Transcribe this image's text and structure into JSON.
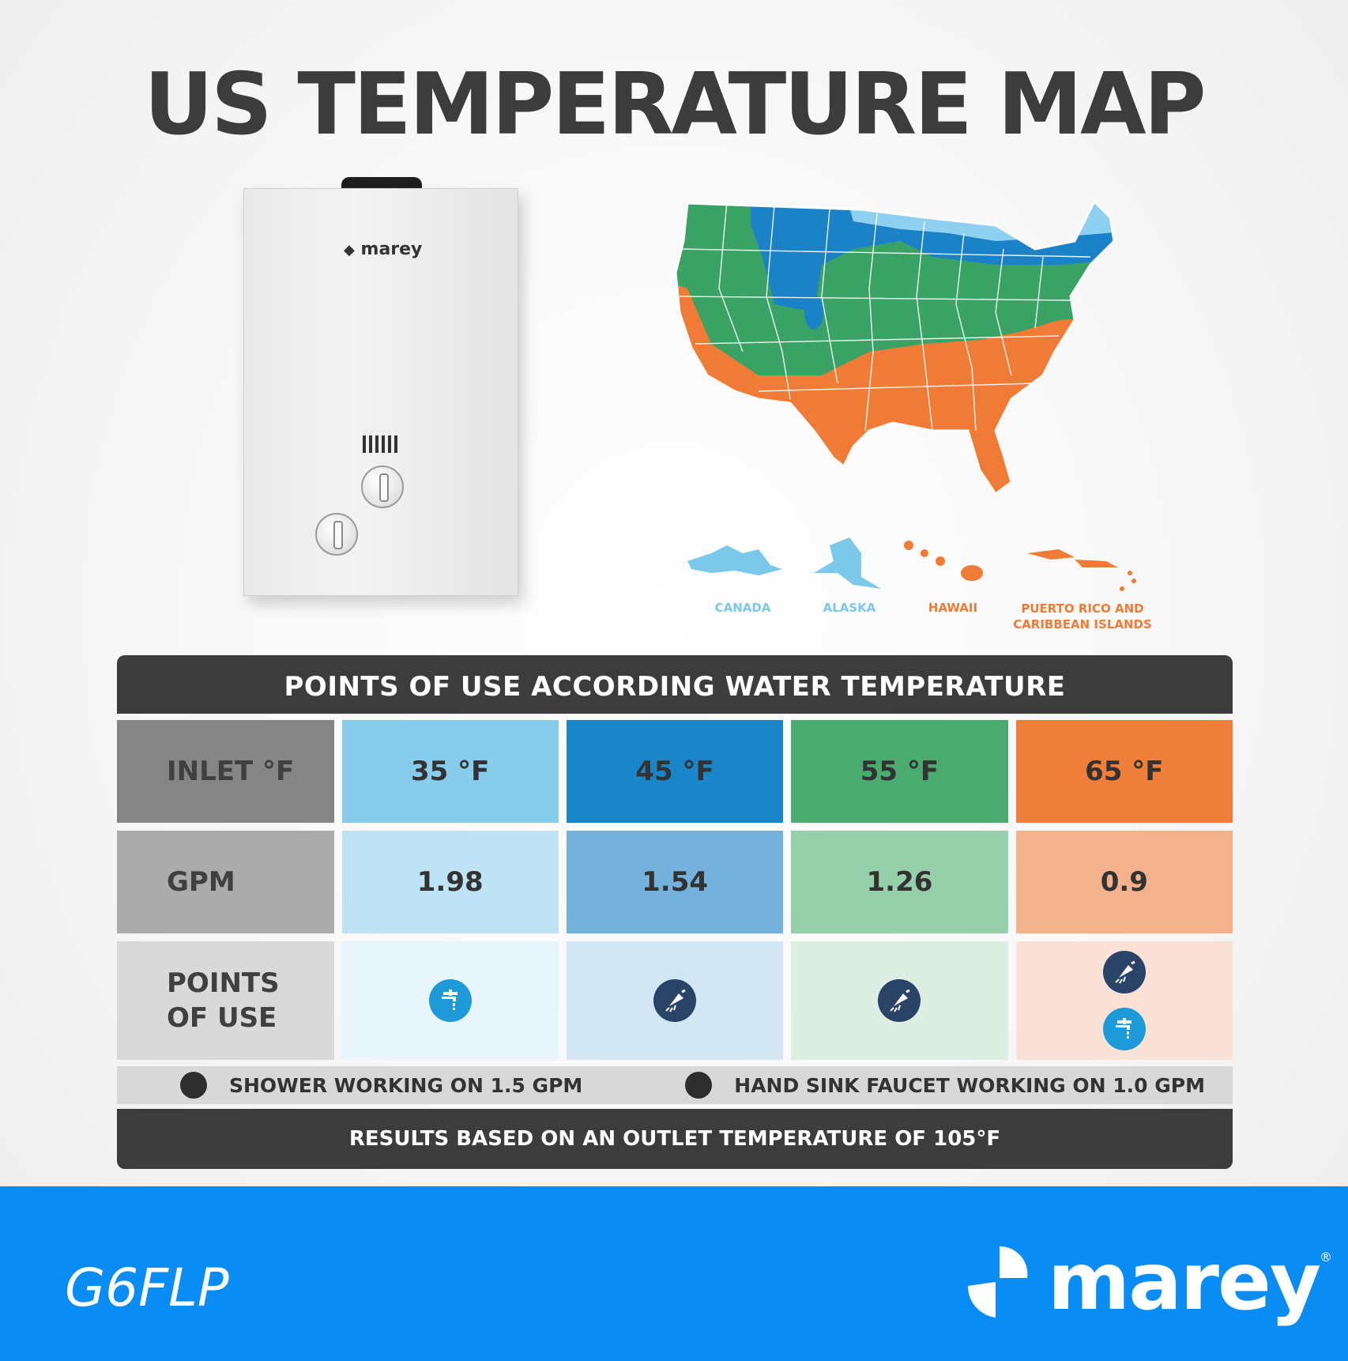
{
  "title": "US TEMPERATURE MAP",
  "heater": {
    "brand": "marey"
  },
  "map": {
    "territories": [
      {
        "name": "CANADA",
        "color": "#7cc8ea"
      },
      {
        "name": "ALASKA",
        "color": "#7cc8ea"
      },
      {
        "name": "HAWAII",
        "color": "#ef7b36"
      },
      {
        "name": "PUERTO RICO AND",
        "name2": "CARIBBEAN ISLANDS",
        "color": "#ef7b36"
      }
    ],
    "zone_colors": {
      "coldest": "#8dd0ef",
      "cold": "#1b82c8",
      "mild": "#3aa264",
      "warm": "#ef7b36"
    }
  },
  "table": {
    "heading": "POINTS OF USE ACCORDING WATER TEMPERATURE",
    "row_inlet_label": "INLET °F",
    "row_gpm_label": "GPM",
    "row_pou_label_1": "POINTS",
    "row_pou_label_2": "OF USE",
    "columns": [
      {
        "inlet": "35 °F",
        "gpm": "1.98",
        "uses": [
          "faucet"
        ],
        "c1": "#87cdeb",
        "c2": "#bde3f5",
        "c3": "#e8f5fc"
      },
      {
        "inlet": "45 °F",
        "gpm": "1.54",
        "uses": [
          "shower"
        ],
        "c1": "#1b85c9",
        "c2": "#74b2dc",
        "c3": "#d2e6f3"
      },
      {
        "inlet": "55 °F",
        "gpm": "1.26",
        "uses": [
          "shower"
        ],
        "c1": "#4aab6e",
        "c2": "#96d0aa",
        "c3": "#dcefe2"
      },
      {
        "inlet": "65 °F",
        "gpm": "0.9",
        "uses": [
          "shower",
          "faucet"
        ],
        "c1": "#ef7f3a",
        "c2": "#f4b28c",
        "c3": "#fae2d6"
      }
    ],
    "legend_shower": "SHOWER WORKING ON 1.5 GPM",
    "legend_faucet": "HAND SINK FAUCET WORKING ON 1.0 GPM",
    "footer": "RESULTS BASED ON AN OUTLET TEMPERATURE OF 105°F"
  },
  "bottom": {
    "model": "G6FLP",
    "brand": "marey",
    "reg": "®",
    "color": "#0a8cf5"
  }
}
